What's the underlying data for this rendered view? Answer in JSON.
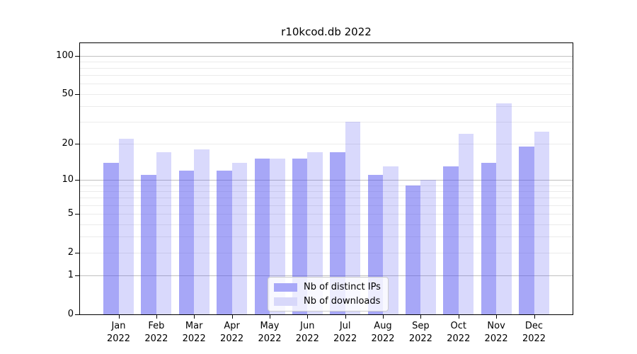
{
  "title": "r10kcod.db 2022",
  "legend": {
    "items": [
      {
        "label": "Nb of distinct IPs",
        "color": "#a8a8f8"
      },
      {
        "label": "Nb of downloads",
        "color": "#d8d8fa"
      }
    ]
  },
  "chart_data": {
    "type": "bar",
    "title": "r10kcod.db 2022",
    "categories": [
      "Jan 2022",
      "Feb 2022",
      "Mar 2022",
      "Apr 2022",
      "May 2022",
      "Jun 2022",
      "Jul 2022",
      "Aug 2022",
      "Sep 2022",
      "Oct 2022",
      "Nov 2022",
      "Dec 2022"
    ],
    "series": [
      {
        "name": "Nb of distinct IPs",
        "color": "#a8a8f8",
        "fill": "rgba(80,80,240,0.50)",
        "values": [
          14,
          11,
          12,
          12,
          15,
          15,
          17,
          11,
          9,
          13,
          14,
          19
        ]
      },
      {
        "name": "Nb of downloads",
        "color": "#d8d8fa",
        "fill": "rgba(80,80,240,0.22)",
        "values": [
          22,
          17,
          18,
          14,
          15,
          17,
          30,
          13,
          10,
          24,
          42,
          25
        ]
      }
    ],
    "xlabel": "",
    "ylabel": "",
    "y_axis": {
      "scale": "symlog",
      "ticks": [
        0,
        1,
        2,
        5,
        10,
        20,
        50,
        100
      ],
      "max": 125,
      "major_gridlines": [
        1,
        10,
        100
      ],
      "minor_gridlines": [
        2,
        3,
        4,
        5,
        6,
        7,
        8,
        9,
        20,
        30,
        40,
        50,
        60,
        70,
        80,
        90
      ]
    },
    "grid": true,
    "legend_position": "lower center",
    "colors": {
      "gridline_major": "#c0c0c0",
      "gridline_minor": "#ebebeb",
      "axis": "#000000",
      "background": "#ffffff"
    }
  }
}
